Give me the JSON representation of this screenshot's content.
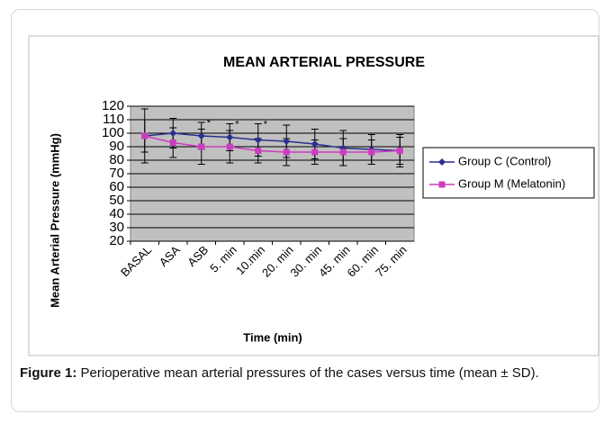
{
  "chart_data": {
    "type": "line",
    "title": "MEAN ARTERIAL PRESSURE",
    "x_label": "Time (min)",
    "y_label": "Mean Arterial Pressure (mmHg)",
    "categories": [
      "BASAL",
      "ASA",
      "ASB",
      "5. min",
      "10.min",
      "20. min",
      "30. min",
      "45. min",
      "60. min",
      "75. min"
    ],
    "annotations": [
      null,
      null,
      "*",
      "*",
      "*",
      null,
      null,
      null,
      null,
      null
    ],
    "series": [
      {
        "name": "Group C (Control)",
        "color": "#2b2f8f",
        "marker": "diamond",
        "values": [
          98,
          100,
          98,
          97,
          95,
          94,
          92,
          89,
          88,
          87
        ],
        "errors": [
          20,
          11,
          10,
          10,
          12,
          12,
          11,
          13,
          11,
          12
        ]
      },
      {
        "name": "Group M (Melatonin)",
        "color": "#cc3cc0",
        "marker": "square",
        "values": [
          98,
          93,
          90,
          90,
          87,
          86,
          86,
          86,
          86,
          87
        ],
        "errors": [
          12,
          11,
          13,
          12,
          9,
          10,
          9,
          10,
          9,
          10
        ]
      }
    ],
    "ylim": [
      20,
      120
    ],
    "yticks": [
      20,
      30,
      40,
      50,
      60,
      70,
      80,
      90,
      100,
      110,
      120
    ],
    "grid": true,
    "legend": "right",
    "plot_background": "#c0c0c0"
  },
  "caption": {
    "label": "Figure 1:",
    "text": "Perioperative mean arterial pressures of the cases versus time (mean ± SD)."
  }
}
